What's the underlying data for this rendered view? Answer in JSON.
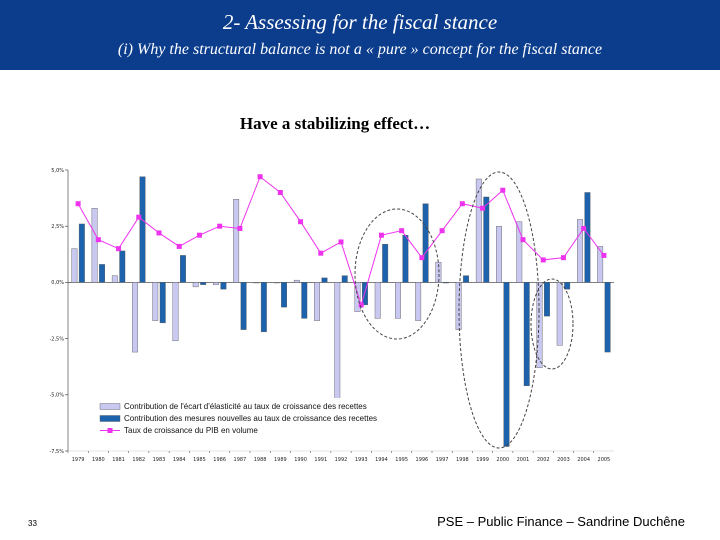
{
  "slide": {
    "title": "2- Assessing for the fiscal stance",
    "subtitle": "(i) Why the structural balance is not a « pure » concept for the fiscal stance",
    "headline": "Have a stabilizing effect…",
    "page_number": "33",
    "footer": "PSE – Public Finance – Sandrine Duchêne"
  },
  "colors": {
    "header_bg": "#0b3d8c",
    "series_light": "#c8c8f0",
    "series_dark": "#1c62ad",
    "series_line": "#ee33ee"
  },
  "chart_data": {
    "type": "bar",
    "categories": [
      "1979",
      "1980",
      "1981",
      "1982",
      "1983",
      "1984",
      "1985",
      "1986",
      "1987",
      "1988",
      "1989",
      "1990",
      "1991",
      "1992",
      "1993",
      "1994",
      "1995",
      "1996",
      "1997",
      "1998",
      "1999",
      "2000",
      "2001",
      "2002",
      "2003",
      "2004",
      "2005"
    ],
    "yticks": [
      "5,0%",
      "2,5%",
      "0,0%",
      "-2,5%",
      "-5,0%",
      "-7,5%"
    ],
    "ylim": [
      -7.5,
      5.0
    ],
    "series": [
      {
        "name": "Contribution de l'écart d'élasticité au taux de croissance des recettes",
        "kind": "bar",
        "values": [
          1.5,
          3.3,
          0.3,
          -3.1,
          -1.7,
          -2.6,
          -0.2,
          -0.1,
          3.7,
          0.0,
          0.0,
          0.1,
          -1.7,
          -5.2,
          -1.3,
          -1.6,
          -1.6,
          -1.7,
          0.9,
          -2.1,
          4.6,
          2.5,
          2.7,
          -3.8,
          -2.8,
          2.8,
          1.6
        ]
      },
      {
        "name": "Contribution des mesures nouvelles au taux de croissance des recettes",
        "kind": "bar",
        "values": [
          2.6,
          0.8,
          1.4,
          4.7,
          -1.8,
          1.2,
          -0.1,
          -0.3,
          -2.1,
          -2.2,
          -1.1,
          -1.6,
          0.2,
          0.3,
          -1.0,
          1.7,
          2.1,
          3.5,
          0.0,
          0.3,
          3.8,
          -7.3,
          -4.6,
          -1.5,
          -0.3,
          4.0,
          -3.1
        ]
      },
      {
        "name": "Taux de croissance du PIB en volume",
        "kind": "line",
        "values": [
          3.5,
          1.9,
          1.5,
          2.9,
          2.2,
          1.6,
          2.1,
          2.5,
          2.4,
          4.7,
          4.0,
          2.7,
          1.3,
          1.8,
          -1.0,
          2.1,
          2.3,
          1.1,
          2.3,
          3.5,
          3.3,
          4.1,
          1.9,
          1.0,
          1.1,
          2.4,
          1.2
        ]
      }
    ],
    "grid": false,
    "legend_position": "bottom-left"
  }
}
